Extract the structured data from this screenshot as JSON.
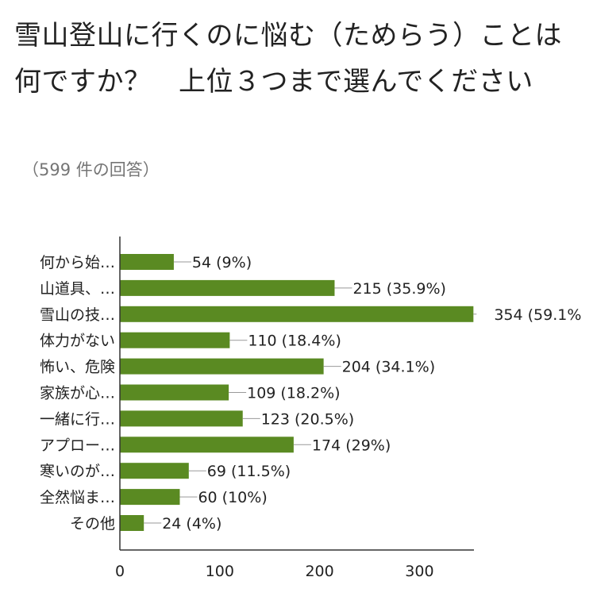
{
  "header": {
    "title": "雪山登山に行くのに悩む（ためらう）ことは何ですか？　上位３つまで選んでください",
    "response_count": "（599 件の回答）"
  },
  "colors": {
    "bar": "#5a8a22",
    "axis": "#333333",
    "text": "#222222"
  },
  "chart_data": {
    "type": "bar",
    "orientation": "horizontal",
    "title": "",
    "xlabel": "",
    "ylabel": "",
    "categories": [
      "何から始…",
      "山道具、…",
      "雪山の技…",
      "体力がない",
      "怖い、危険",
      "家族が心…",
      "一緒に行…",
      "アプロー…",
      "寒いのが…",
      "全然悩ま…",
      "その他"
    ],
    "values": [
      54,
      215,
      354,
      110,
      204,
      109,
      123,
      174,
      69,
      60,
      24
    ],
    "percents": [
      "9%",
      "35.9%",
      "59.1%",
      "18.4%",
      "34.1%",
      "18.2%",
      "20.5%",
      "29%",
      "11.5%",
      "10%",
      "4%"
    ],
    "value_labels": [
      "54 (9%)",
      "215 (35.9%)",
      "354 (59.1%",
      "110 (18.4%)",
      "204 (34.1%)",
      "109 (18.2%)",
      "123 (20.5%)",
      "174 (29%)",
      "69 (11.5%)",
      "60 (10%)",
      "24 (4%)"
    ],
    "xticks": [
      0,
      100,
      200,
      300
    ],
    "xlim": [
      0,
      354
    ],
    "grid": false,
    "legend": "none"
  }
}
